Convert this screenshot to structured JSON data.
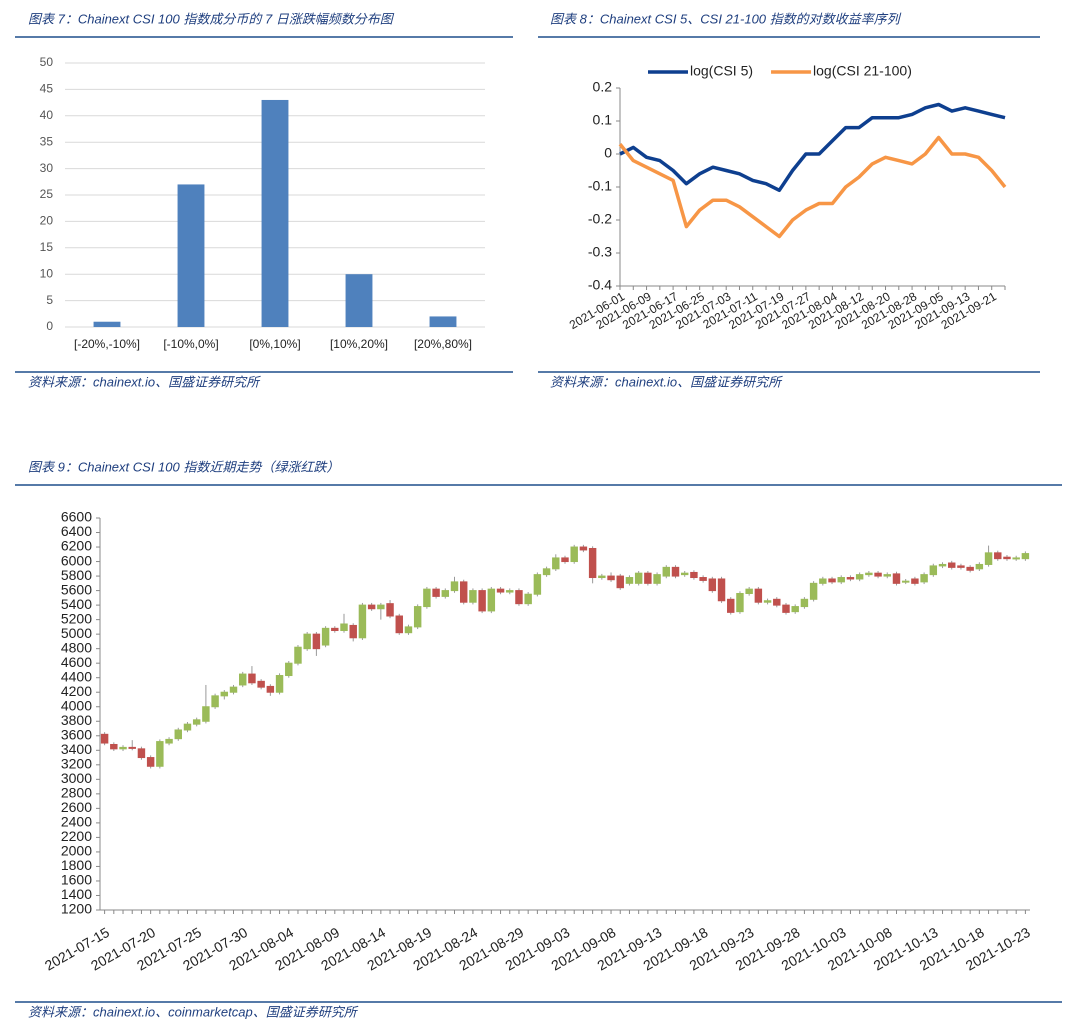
{
  "chart_data": [
    {
      "type": "bar",
      "title": "图表 7：Chainext CSI 100 指数成分币的 7 日涨跌幅频数分布图",
      "source": "资料来源：chainext.io、国盛证券研究所",
      "categories": [
        "[-20%,-10%]",
        "[-10%,0%]",
        "[0%,10%]",
        "[10%,20%]",
        "[20%,80%]"
      ],
      "values": [
        1,
        27,
        43,
        10,
        2
      ],
      "color": "#4f81bd",
      "ylim": [
        0,
        50
      ],
      "yticks": [
        0,
        5,
        10,
        15,
        20,
        25,
        30,
        35,
        40,
        45,
        50
      ],
      "grid": true
    },
    {
      "type": "line",
      "title": "图表 8：Chainext CSI 5、CSI 21-100 指数的对数收益率序列",
      "source": "资料来源：chainext.io、国盛证券研究所",
      "categories": [
        "2021-06-01",
        null,
        "2021-06-09",
        null,
        "2021-06-17",
        null,
        "2021-06-25",
        null,
        "2021-07-03",
        null,
        "2021-07-11",
        null,
        "2021-07-19",
        null,
        "2021-07-27",
        null,
        "2021-08-04",
        null,
        "2021-08-12",
        null,
        "2021-08-20",
        null,
        "2021-08-28",
        null,
        "2021-09-05",
        null,
        "2021-09-13",
        null,
        "2021-09-21",
        null
      ],
      "series": [
        {
          "name": "log(CSI 5)",
          "color": "#0e3f8f",
          "values": [
            0,
            0.02,
            -0.01,
            -0.02,
            -0.05,
            -0.09,
            -0.06,
            -0.04,
            -0.05,
            -0.06,
            -0.08,
            -0.09,
            -0.11,
            -0.05,
            0,
            0,
            0.04,
            0.08,
            0.08,
            0.11,
            0.11,
            0.11,
            0.12,
            0.14,
            0.15,
            0.13,
            0.14,
            0.13,
            0.12,
            0.11
          ]
        },
        {
          "name": "log(CSI 21-100)",
          "color": "#f79646",
          "values": [
            0.03,
            -0.02,
            -0.04,
            -0.06,
            -0.08,
            -0.22,
            -0.17,
            -0.14,
            -0.14,
            -0.16,
            -0.19,
            -0.22,
            -0.25,
            -0.2,
            -0.17,
            -0.15,
            -0.15,
            -0.1,
            -0.07,
            -0.03,
            -0.01,
            -0.02,
            -0.03,
            0,
            0.05,
            0,
            0,
            -0.01,
            -0.05,
            -0.1
          ]
        }
      ],
      "ylim": [
        -0.4,
        0.2
      ],
      "yticks": [
        -0.4,
        -0.3,
        -0.2,
        -0.1,
        0,
        0.1,
        0.2
      ],
      "legend": "top"
    },
    {
      "type": "candlestick",
      "title": "图表 9：Chainext CSI 100 指数近期走势（绿涨红跌）",
      "source": "资料来源：chainext.io、coinmarketcap、国盛证券研究所",
      "up_color": "#9bbb59",
      "down_color": "#c0504d",
      "categories": [
        "2021-07-15",
        null,
        null,
        null,
        null,
        "2021-07-20",
        null,
        null,
        null,
        null,
        "2021-07-25",
        null,
        null,
        null,
        null,
        "2021-07-30",
        null,
        null,
        null,
        null,
        "2021-08-04",
        null,
        null,
        null,
        null,
        "2021-08-09",
        null,
        null,
        null,
        null,
        "2021-08-14",
        null,
        null,
        null,
        null,
        "2021-08-19",
        null,
        null,
        null,
        null,
        "2021-08-24",
        null,
        null,
        null,
        null,
        "2021-08-29",
        null,
        null,
        null,
        null,
        "2021-09-03",
        null,
        null,
        null,
        null,
        "2021-09-08",
        null,
        null,
        null,
        null,
        "2021-09-13",
        null,
        null,
        null,
        null,
        "2021-09-18",
        null,
        null,
        null,
        null,
        "2021-09-23",
        null,
        null,
        null,
        null,
        "2021-09-28",
        null,
        null,
        null,
        null,
        "2021-10-03",
        null,
        null,
        null,
        null,
        "2021-10-08",
        null,
        null,
        null,
        null,
        "2021-10-13",
        null,
        null,
        null,
        null,
        "2021-10-18",
        null,
        null,
        null,
        null,
        "2021-10-23"
      ],
      "open": [
        3620,
        3480,
        3420,
        3440,
        3420,
        3300,
        3180,
        3500,
        3560,
        3680,
        3760,
        3800,
        4000,
        4150,
        4200,
        4300,
        4450,
        4350,
        4280,
        4200,
        4430,
        4600,
        4800,
        5000,
        4850,
        5080,
        5050,
        5120,
        4950,
        5400,
        5350,
        5420,
        5250,
        5020,
        5100,
        5380,
        5620,
        5520,
        5600,
        5720,
        5440,
        5600,
        5320,
        5620,
        5580,
        5600,
        5420,
        5550,
        5820,
        5900,
        6050,
        6000,
        6200,
        6180,
        5780,
        5800,
        5800,
        5700,
        5700,
        5840,
        5700,
        5800,
        5920,
        5820,
        5850,
        5780,
        5760,
        5760,
        5480,
        5310,
        5560,
        5620,
        5440,
        5480,
        5400,
        5310,
        5380,
        5480,
        5700,
        5760,
        5720,
        5780,
        5760,
        5820,
        5840,
        5800,
        5830,
        5720,
        5760,
        5720,
        5820,
        5940,
        5980,
        5940,
        5920,
        5900,
        5960,
        6120,
        6060,
        6040,
        6040
      ],
      "high": [
        3650,
        3510,
        3470,
        3540,
        3450,
        3330,
        3550,
        3580,
        3710,
        3790,
        3850,
        4300,
        4180,
        4230,
        4300,
        4480,
        4560,
        4380,
        4310,
        4460,
        4630,
        4850,
        5030,
        5030,
        5110,
        5110,
        5280,
        5150,
        5430,
        5430,
        5430,
        5470,
        5280,
        5130,
        5410,
        5650,
        5650,
        5630,
        5790,
        5750,
        5630,
        5630,
        5650,
        5650,
        5630,
        5630,
        5580,
        5850,
        5930,
        6100,
        6080,
        6230,
        6230,
        6210,
        5830,
        5850,
        5830,
        5810,
        5870,
        5870,
        5850,
        5950,
        5950,
        5870,
        5880,
        5810,
        5790,
        5790,
        5510,
        5590,
        5650,
        5650,
        5490,
        5510,
        5430,
        5410,
        5510,
        5730,
        5790,
        5790,
        5810,
        5810,
        5850,
        5870,
        5870,
        5850,
        5860,
        5760,
        5790,
        5850,
        5970,
        5990,
        6010,
        5970,
        5950,
        5990,
        6220,
        6150,
        6090,
        6080,
        6140
      ],
      "low": [
        3470,
        3390,
        3390,
        3400,
        3270,
        3150,
        3150,
        3470,
        3530,
        3650,
        3730,
        3770,
        3970,
        4100,
        4170,
        4270,
        4300,
        4240,
        4150,
        4170,
        4400,
        4570,
        4770,
        4700,
        4820,
        5020,
        5020,
        4900,
        4920,
        5320,
        5200,
        5220,
        4990,
        4990,
        5070,
        5350,
        5490,
        5490,
        5570,
        5410,
        5410,
        5290,
        5290,
        5550,
        5550,
        5390,
        5390,
        5520,
        5790,
        5870,
        5970,
        5970,
        6130,
        5700,
        5750,
        5720,
        5610,
        5670,
        5670,
        5670,
        5670,
        5770,
        5770,
        5790,
        5750,
        5710,
        5570,
        5430,
        5270,
        5280,
        5530,
        5410,
        5410,
        5370,
        5270,
        5280,
        5350,
        5450,
        5670,
        5690,
        5690,
        5730,
        5730,
        5790,
        5770,
        5770,
        5670,
        5690,
        5670,
        5690,
        5790,
        5910,
        5890,
        5890,
        5850,
        5870,
        5930,
        6010,
        6010,
        6010,
        6010
      ],
      "close": [
        3500,
        3420,
        3440,
        3430,
        3300,
        3180,
        3520,
        3550,
        3680,
        3760,
        3820,
        4000,
        4150,
        4200,
        4270,
        4450,
        4330,
        4270,
        4200,
        4430,
        4600,
        4820,
        5000,
        4800,
        5080,
        5050,
        5140,
        4950,
        5400,
        5350,
        5400,
        5250,
        5020,
        5100,
        5380,
        5620,
        5520,
        5600,
        5720,
        5440,
        5600,
        5320,
        5620,
        5580,
        5600,
        5420,
        5550,
        5820,
        5900,
        6050,
        6000,
        6200,
        6160,
        5780,
        5800,
        5750,
        5640,
        5780,
        5840,
        5700,
        5820,
        5920,
        5800,
        5840,
        5780,
        5740,
        5600,
        5460,
        5300,
        5560,
        5620,
        5440,
        5460,
        5400,
        5300,
        5380,
        5480,
        5700,
        5760,
        5720,
        5780,
        5760,
        5820,
        5840,
        5800,
        5820,
        5700,
        5730,
        5700,
        5820,
        5940,
        5960,
        5920,
        5920,
        5880,
        5960,
        6120,
        6040,
        6040,
        6050,
        6110
      ],
      "ylim": [
        1200,
        6600
      ],
      "yticks": [
        1200,
        1400,
        1600,
        1800,
        2000,
        2200,
        2400,
        2600,
        2800,
        3000,
        3200,
        3400,
        3600,
        3800,
        4000,
        4200,
        4400,
        4600,
        4800,
        5000,
        5200,
        5400,
        5600,
        5800,
        6000,
        6200,
        6400,
        6600
      ]
    }
  ]
}
